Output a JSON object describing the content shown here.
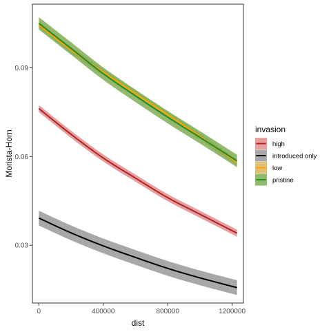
{
  "chart_data": {
    "type": "line",
    "xlabel": "dist",
    "ylabel": "Morista-Horn",
    "xlim": [
      -40000,
      1270000
    ],
    "ylim": [
      0.0105,
      0.1115
    ],
    "x_ticks": [
      0,
      400000,
      800000,
      1200000
    ],
    "x_tick_labels": [
      "0",
      "400000",
      "800000",
      "1200000"
    ],
    "y_ticks": [
      0.03,
      0.06,
      0.09
    ],
    "y_tick_labels": [
      "0.03",
      "0.06",
      "0.09"
    ],
    "grid": false,
    "legend": {
      "title": "invasion",
      "position": "right"
    },
    "x": [
      0,
      200000,
      400000,
      600000,
      800000,
      1000000,
      1230000
    ],
    "series": [
      {
        "name": "high",
        "color": "#b22222",
        "ribbon_color": "#e08e8e",
        "values": [
          0.0762,
          0.0675,
          0.0595,
          0.0527,
          0.0461,
          0.0405,
          0.0341
        ],
        "ribbon_halfwidth": 0.0012
      },
      {
        "name": "introduced only",
        "color": "#000000",
        "ribbon_color": "#999999",
        "values": [
          0.0392,
          0.0342,
          0.0298,
          0.0259,
          0.0222,
          0.019,
          0.0157
        ],
        "ribbon_halfwidth": 0.0025
      },
      {
        "name": "low",
        "color": "#ffa500",
        "ribbon_color": "#d9b65e",
        "values": [
          0.1045,
          0.096,
          0.0885,
          0.0812,
          0.0741,
          0.0668,
          0.058
        ],
        "ribbon_halfwidth": 0.0011
      },
      {
        "name": "pristine",
        "color": "#228b22",
        "ribbon_color": "#7fae56",
        "values": [
          0.105,
          0.0965,
          0.088,
          0.0805,
          0.0733,
          0.0665,
          0.0585
        ],
        "ribbon_halfwidth": 0.0021
      }
    ]
  }
}
